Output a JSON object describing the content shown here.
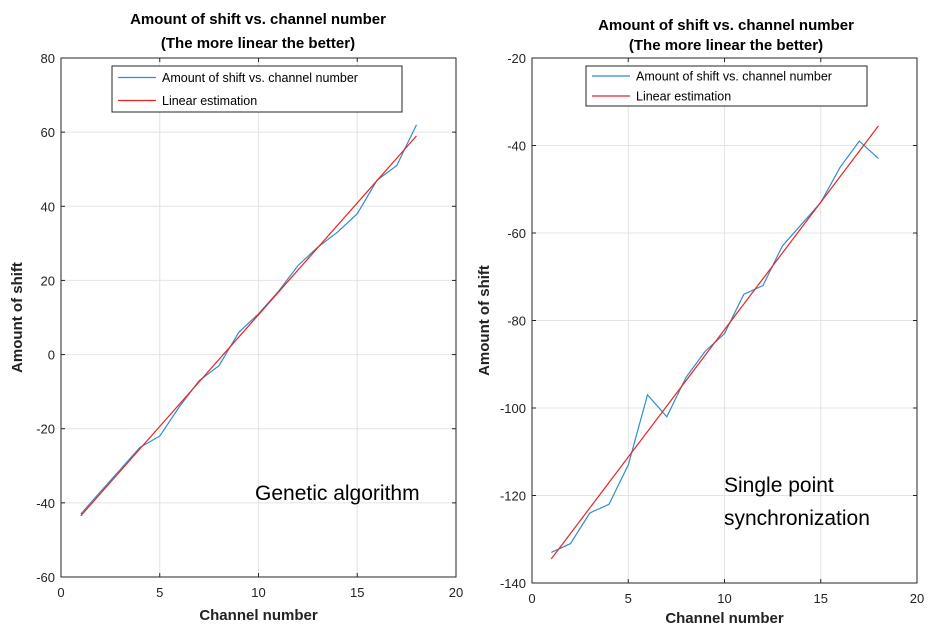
{
  "chart_data": [
    {
      "type": "line",
      "title": "Amount of shift vs. channel number",
      "subtitle": "(The more linear the better)",
      "xlabel": "Channel number",
      "ylabel": "Amount of shift",
      "xlim": [
        0,
        20
      ],
      "ylim": [
        -60,
        80
      ],
      "xticks": [
        0,
        5,
        10,
        15,
        20
      ],
      "yticks": [
        -60,
        -40,
        -20,
        0,
        20,
        40,
        60,
        80
      ],
      "grid": true,
      "legend_position": "top",
      "annotation": "Genetic algorithm",
      "series": [
        {
          "name": "Amount of shift vs. channel number",
          "color": "#2f8fc9",
          "x": [
            1,
            2,
            3,
            4,
            5,
            6,
            7,
            8,
            9,
            10,
            11,
            12,
            13,
            14,
            15,
            16,
            17,
            18
          ],
          "y": [
            -43,
            -37,
            -31,
            -25,
            -22,
            -14,
            -7,
            -3,
            6,
            11,
            17,
            24,
            29,
            33,
            38,
            47,
            51,
            62
          ]
        },
        {
          "name": "Linear estimation",
          "color": "#ee2222",
          "x": [
            1,
            18
          ],
          "y": [
            -43.5,
            59
          ]
        }
      ]
    },
    {
      "type": "line",
      "title": "Amount of shift vs. channel number",
      "subtitle": "(The more linear the better)",
      "xlabel": "Channel number",
      "ylabel": "Amount of shift",
      "xlim": [
        0,
        20
      ],
      "ylim": [
        -140,
        -20
      ],
      "xticks": [
        0,
        5,
        10,
        15,
        20
      ],
      "yticks": [
        -140,
        -120,
        -100,
        -80,
        -60,
        -40,
        -20
      ],
      "grid": true,
      "legend_position": "top",
      "annotation": [
        "Single point",
        "synchronization"
      ],
      "series": [
        {
          "name": "Amount of shift vs. channel number",
          "color": "#2f8fc9",
          "x": [
            1,
            2,
            3,
            4,
            5,
            6,
            7,
            8,
            9,
            10,
            11,
            12,
            13,
            14,
            15,
            16,
            17,
            18
          ],
          "y": [
            -133,
            -131,
            -124,
            -122,
            -113,
            -97,
            -102,
            -93,
            -87,
            -83,
            -74,
            -72,
            -63,
            -58,
            -53,
            -45,
            -39,
            -43
          ]
        },
        {
          "name": "Linear estimation",
          "color": "#ee2222",
          "x": [
            1,
            18
          ],
          "y": [
            -134.5,
            -35.5
          ]
        }
      ]
    }
  ]
}
